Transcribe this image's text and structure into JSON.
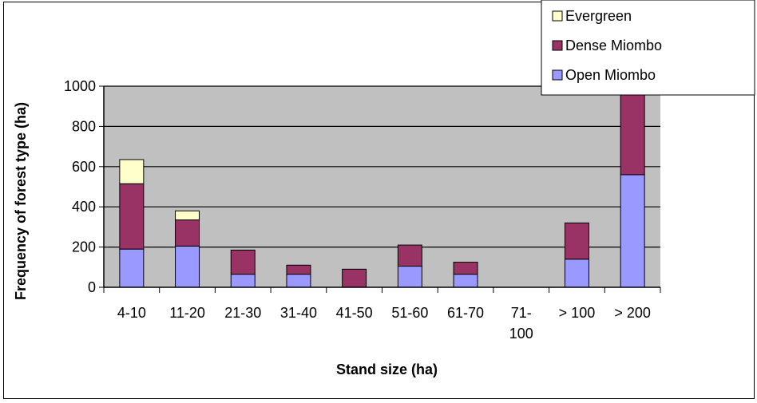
{
  "chart_data": {
    "type": "bar",
    "stacked": true,
    "categories": [
      "4-10",
      "11-20",
      "21-30",
      "31-40",
      "41-50",
      "51-60",
      "61-70",
      "71-100",
      "> 100",
      "> 200"
    ],
    "category_labels": [
      [
        "4-10"
      ],
      [
        "11-20"
      ],
      [
        "21-30"
      ],
      [
        "31-40"
      ],
      [
        "41-50"
      ],
      [
        "51-60"
      ],
      [
        "61-70"
      ],
      [
        "71-",
        "100"
      ],
      [
        "> 100"
      ],
      [
        "> 200"
      ]
    ],
    "series": [
      {
        "name": "Open Miombo",
        "color": "#9999ff",
        "values": [
          190,
          205,
          65,
          65,
          0,
          105,
          65,
          0,
          140,
          560
        ]
      },
      {
        "name": "Dense Miombo",
        "color": "#993366",
        "values": [
          325,
          130,
          120,
          45,
          90,
          105,
          60,
          0,
          180,
          440
        ]
      },
      {
        "name": "Evergreen",
        "color": "#ffffcc",
        "values": [
          120,
          45,
          0,
          0,
          0,
          0,
          0,
          0,
          0,
          0
        ]
      }
    ],
    "legend_order": [
      "Evergreen",
      "Dense Miombo",
      "Open Miombo"
    ],
    "xlabel": "Stand size (ha)",
    "ylabel": "Frequency of forest type (ha)",
    "ylim": [
      0,
      1000
    ],
    "yticks": [
      0,
      200,
      400,
      600,
      800,
      1000
    ],
    "grid": true,
    "plot_background": "#c0c0c0",
    "legend_position": "top-right"
  }
}
